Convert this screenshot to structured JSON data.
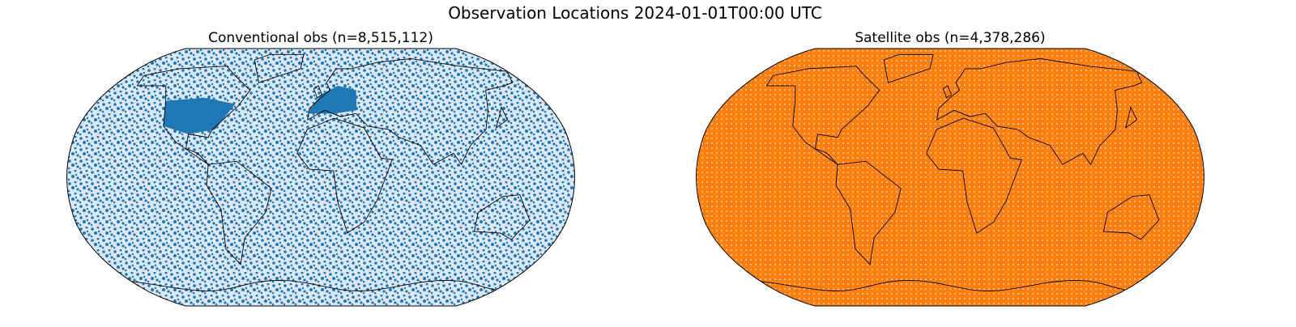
{
  "title": "Observation Locations 2024-01-01T00:00 UTC",
  "panels": [
    {
      "title": "Conventional obs (n=8,515,112)",
      "color": "#1f77b4"
    },
    {
      "title": "Satellite obs (n=4,378,286)",
      "color": "#ff7f0e"
    }
  ]
}
